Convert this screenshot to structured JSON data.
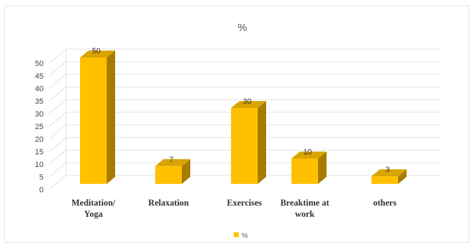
{
  "chart_data": {
    "type": "bar",
    "title": "%",
    "categories": [
      "Meditation/ Yoga",
      "Relaxation",
      "Exercises",
      "Breaktime at work",
      "others"
    ],
    "category_lines": [
      [
        "Meditation/",
        "Yoga"
      ],
      [
        "Relaxation"
      ],
      [
        "Exercises"
      ],
      [
        "Breaktime at",
        "work"
      ],
      [
        "others"
      ]
    ],
    "series": [
      {
        "name": "%",
        "values": [
          50,
          7,
          30,
          10,
          3
        ]
      }
    ],
    "ylim": [
      0,
      50
    ],
    "yticks": [
      0,
      5,
      10,
      15,
      20,
      25,
      30,
      35,
      40,
      45,
      50
    ],
    "xlabel": "",
    "ylabel": "",
    "grid": true,
    "legend": "bottom",
    "style": "3d-column",
    "colors": {
      "bar_front": "#FFC000",
      "bar_top": "#D9A400",
      "bar_side": "#A67C00",
      "grid": "#e0e0e0"
    }
  }
}
